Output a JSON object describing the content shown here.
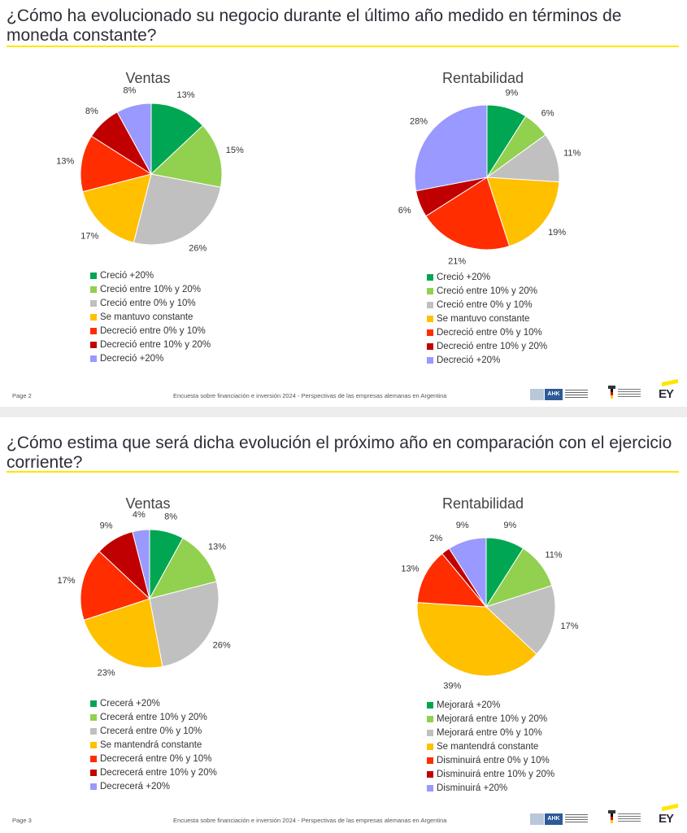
{
  "slides": [
    {
      "title": "¿Cómo ha evolucionado su negocio durante el último año medido en términos de moneda constante?",
      "page": "Page 2",
      "footer": "Encuesta sobre financiación e inversión 2024 - Perspectivas de las empresas alemanas en Argentina",
      "logos": {
        "ahk": "AHK",
        "ey": "EY"
      }
    },
    {
      "title": "¿Cómo estima que será dicha evolución el próximo año en comparación con el ejercicio corriente?",
      "page": "Page 3",
      "footer": "Encuesta sobre financiación e inversión 2024 - Perspectivas de las empresas alemanas en Argentina",
      "logos": {
        "ahk": "AHK",
        "ey": "EY"
      }
    }
  ],
  "colors": [
    "#00a651",
    "#92d050",
    "#c0c0c0",
    "#ffc000",
    "#ff2d00",
    "#c00000",
    "#9999ff"
  ],
  "chart_data": [
    {
      "type": "pie",
      "title": "Ventas",
      "categories": [
        "Creció +20%",
        "Creció entre 10% y 20%",
        "Creció entre 0% y 10%",
        "Se mantuvo constante",
        "Decreció entre 0% y 10%",
        "Decreció entre 10% y 20%",
        "Decreció +20%"
      ],
      "values": [
        13,
        15,
        26,
        17,
        13,
        8,
        8
      ],
      "labels": [
        "13%",
        "15%",
        "26%",
        "17%",
        "13%",
        "8%",
        "8%"
      ],
      "legend_position": "bottom"
    },
    {
      "type": "pie",
      "title": "Rentabilidad",
      "categories": [
        "Creció +20%",
        "Creció entre 10% y 20%",
        "Creció entre 0% y 10%",
        "Se mantuvo constante",
        "Decreció entre 0% y 10%",
        "Decreció entre 10% y 20%",
        "Decreció +20%"
      ],
      "values": [
        9,
        6,
        11,
        19,
        21,
        6,
        28
      ],
      "labels": [
        "9%",
        "6%",
        "11%",
        "19%",
        "21%",
        "6%",
        "28%"
      ],
      "legend_position": "bottom"
    },
    {
      "type": "pie",
      "title": "Ventas",
      "categories": [
        "Crecerá +20%",
        "Crecerá entre 10% y 20%",
        "Crecerá entre 0% y 10%",
        "Se mantendrá constante",
        "Decrecerá entre 0% y 10%",
        "Decrecerá entre 10% y 20%",
        "Decrecerá +20%"
      ],
      "values": [
        8,
        13,
        26,
        23,
        17,
        9,
        4
      ],
      "labels": [
        "8%",
        "13%",
        "26%",
        "23%",
        "17%",
        "9%",
        "4%"
      ],
      "legend_position": "bottom"
    },
    {
      "type": "pie",
      "title": "Rentabilidad",
      "categories": [
        "Mejorará +20%",
        "Mejorará entre 10% y 20%",
        "Mejorará entre 0% y 10%",
        "Se mantendrá constante",
        "Disminuirá entre 0% y 10%",
        "Disminuirá entre 10% y 20%",
        "Disminuirá +20%"
      ],
      "values": [
        9,
        11,
        17,
        39,
        13,
        2,
        9
      ],
      "labels": [
        "9%",
        "11%",
        "17%",
        "39%",
        "13%",
        "2%",
        "9%"
      ],
      "legend_position": "bottom"
    }
  ]
}
